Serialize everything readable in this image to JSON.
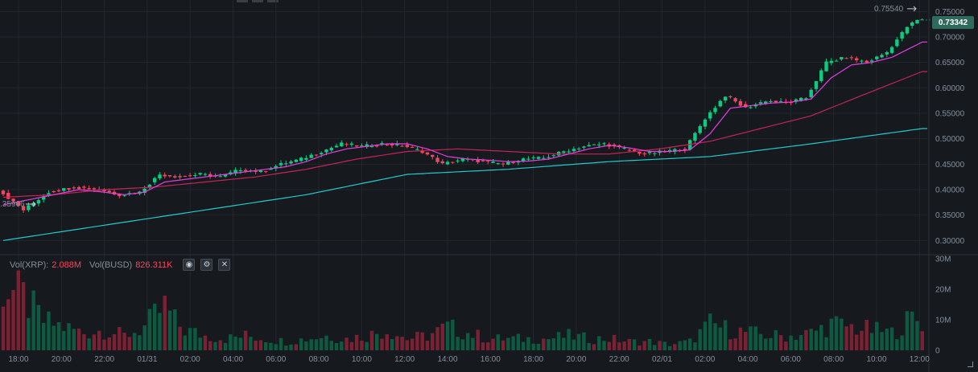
{
  "chart_data": {
    "type": "candlestick",
    "pair_symbols": {
      "base": "XRP",
      "quote": "BUSD"
    },
    "price_axis": {
      "ticks": [
        "0.75000",
        "0.70000",
        "0.65000",
        "0.60000",
        "0.55000",
        "0.50000",
        "0.45000",
        "0.40000",
        "0.35000",
        "0.30000"
      ],
      "ylim": [
        0.28,
        0.76
      ]
    },
    "current_price": "0.73342",
    "high_marker": "0.75540",
    "low_marker": ".35966",
    "time_axis": {
      "ticks": [
        "18:00",
        "20:00",
        "22:00",
        "01/31",
        "02:00",
        "04:00",
        "06:00",
        "08:00",
        "10:00",
        "12:00",
        "14:00",
        "16:00",
        "18:00",
        "20:00",
        "22:00",
        "02/01",
        "02:00",
        "04:00",
        "06:00",
        "08:00",
        "10:00",
        "12:00"
      ]
    },
    "close_path": [
      [
        0,
        0.4
      ],
      [
        5,
        0.36
      ],
      [
        10,
        0.395
      ],
      [
        15,
        0.405
      ],
      [
        20,
        0.4
      ],
      [
        24,
        0.39
      ],
      [
        28,
        0.395
      ],
      [
        32,
        0.43
      ],
      [
        36,
        0.425
      ],
      [
        40,
        0.43
      ],
      [
        44,
        0.425
      ],
      [
        48,
        0.44
      ],
      [
        52,
        0.435
      ],
      [
        56,
        0.45
      ],
      [
        60,
        0.46
      ],
      [
        64,
        0.475
      ],
      [
        68,
        0.49
      ],
      [
        72,
        0.485
      ],
      [
        76,
        0.49
      ],
      [
        80,
        0.487
      ],
      [
        84,
        0.475
      ],
      [
        88,
        0.45
      ],
      [
        92,
        0.46
      ],
      [
        96,
        0.455
      ],
      [
        100,
        0.45
      ],
      [
        104,
        0.46
      ],
      [
        108,
        0.462
      ],
      [
        112,
        0.475
      ],
      [
        116,
        0.485
      ],
      [
        120,
        0.49
      ],
      [
        124,
        0.48
      ],
      [
        128,
        0.47
      ],
      [
        132,
        0.475
      ],
      [
        136,
        0.48
      ],
      [
        140,
        0.54
      ],
      [
        144,
        0.585
      ],
      [
        148,
        0.56
      ],
      [
        152,
        0.575
      ],
      [
        156,
        0.57
      ],
      [
        160,
        0.58
      ],
      [
        164,
        0.65
      ],
      [
        168,
        0.66
      ],
      [
        172,
        0.65
      ],
      [
        176,
        0.67
      ],
      [
        180,
        0.72
      ],
      [
        182,
        0.733
      ]
    ],
    "ma_fast_path": [
      [
        0,
        0.37
      ],
      [
        5,
        0.38
      ],
      [
        10,
        0.39
      ],
      [
        15,
        0.4
      ],
      [
        20,
        0.395
      ],
      [
        24,
        0.39
      ],
      [
        28,
        0.395
      ],
      [
        32,
        0.415
      ],
      [
        36,
        0.42
      ],
      [
        40,
        0.425
      ],
      [
        44,
        0.43
      ],
      [
        48,
        0.435
      ],
      [
        52,
        0.44
      ],
      [
        56,
        0.445
      ],
      [
        60,
        0.455
      ],
      [
        64,
        0.47
      ],
      [
        68,
        0.48
      ],
      [
        72,
        0.485
      ],
      [
        76,
        0.49
      ],
      [
        80,
        0.49
      ],
      [
        84,
        0.48
      ],
      [
        88,
        0.465
      ],
      [
        92,
        0.46
      ],
      [
        96,
        0.458
      ],
      [
        100,
        0.455
      ],
      [
        104,
        0.456
      ],
      [
        108,
        0.46
      ],
      [
        112,
        0.47
      ],
      [
        116,
        0.48
      ],
      [
        120,
        0.487
      ],
      [
        124,
        0.482
      ],
      [
        128,
        0.475
      ],
      [
        132,
        0.475
      ],
      [
        136,
        0.478
      ],
      [
        140,
        0.51
      ],
      [
        144,
        0.56
      ],
      [
        148,
        0.565
      ],
      [
        152,
        0.57
      ],
      [
        156,
        0.572
      ],
      [
        160,
        0.578
      ],
      [
        164,
        0.62
      ],
      [
        168,
        0.645
      ],
      [
        172,
        0.65
      ],
      [
        176,
        0.66
      ],
      [
        180,
        0.68
      ],
      [
        182,
        0.69
      ]
    ],
    "ma_mid_path": [
      [
        0,
        0.385
      ],
      [
        10,
        0.39
      ],
      [
        20,
        0.4
      ],
      [
        30,
        0.405
      ],
      [
        40,
        0.415
      ],
      [
        50,
        0.425
      ],
      [
        60,
        0.44
      ],
      [
        70,
        0.46
      ],
      [
        80,
        0.475
      ],
      [
        90,
        0.48
      ],
      [
        100,
        0.475
      ],
      [
        110,
        0.47
      ],
      [
        120,
        0.47
      ],
      [
        130,
        0.48
      ],
      [
        140,
        0.495
      ],
      [
        150,
        0.52
      ],
      [
        160,
        0.545
      ],
      [
        170,
        0.585
      ],
      [
        182,
        0.632
      ]
    ],
    "ma_slow_path": [
      [
        0,
        0.3
      ],
      [
        20,
        0.33
      ],
      [
        40,
        0.36
      ],
      [
        60,
        0.39
      ],
      [
        80,
        0.43
      ],
      [
        100,
        0.44
      ],
      [
        120,
        0.455
      ],
      [
        140,
        0.465
      ],
      [
        160,
        0.49
      ],
      [
        182,
        0.52
      ]
    ],
    "volume": {
      "label_base": "Vol(XRP):",
      "value_base": "2.088M",
      "label_quote": "Vol(BUSD)",
      "value_quote": "826.311K",
      "axis_ticks": [
        "30M",
        "20M",
        "10M",
        "0"
      ],
      "ymax": 31,
      "levels": [
        [
          0,
          22
        ],
        [
          4,
          18
        ],
        [
          8,
          10
        ],
        [
          12,
          8
        ],
        [
          16,
          6
        ],
        [
          20,
          7
        ],
        [
          24,
          5
        ],
        [
          28,
          8
        ],
        [
          32,
          15
        ],
        [
          34,
          10
        ],
        [
          36,
          7
        ],
        [
          40,
          5
        ],
        [
          44,
          4
        ],
        [
          48,
          5
        ],
        [
          52,
          4
        ],
        [
          56,
          3
        ],
        [
          60,
          4
        ],
        [
          64,
          5
        ],
        [
          68,
          4
        ],
        [
          72,
          5
        ],
        [
          76,
          7
        ],
        [
          80,
          4
        ],
        [
          84,
          5
        ],
        [
          88,
          8
        ],
        [
          92,
          6
        ],
        [
          96,
          4
        ],
        [
          100,
          4
        ],
        [
          104,
          4
        ],
        [
          108,
          4
        ],
        [
          112,
          5
        ],
        [
          116,
          4
        ],
        [
          120,
          4
        ],
        [
          124,
          3
        ],
        [
          128,
          3
        ],
        [
          132,
          2
        ],
        [
          136,
          3
        ],
        [
          140,
          9
        ],
        [
          144,
          7
        ],
        [
          148,
          6
        ],
        [
          152,
          5
        ],
        [
          156,
          5
        ],
        [
          160,
          6
        ],
        [
          164,
          9
        ],
        [
          168,
          8
        ],
        [
          172,
          7
        ],
        [
          176,
          6
        ],
        [
          180,
          11
        ],
        [
          182,
          10
        ]
      ]
    }
  },
  "colors": {
    "up": "#0ecb81",
    "down": "#f6465d",
    "ma_fast": "#e53ee0",
    "ma_mid": "#c52458",
    "ma_slow": "#23c9cc",
    "grid": "#22272e",
    "bg": "#161a1e"
  },
  "icons": {
    "eye": "eye-icon",
    "settings": "settings-icon",
    "close": "close-icon"
  }
}
